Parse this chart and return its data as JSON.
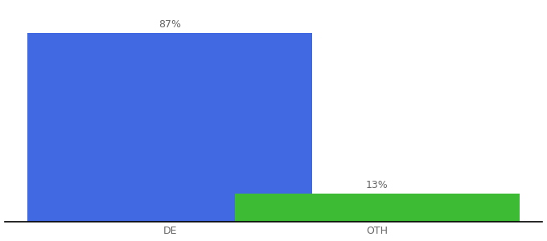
{
  "categories": [
    "DE",
    "OTH"
  ],
  "values": [
    87,
    13
  ],
  "bar_colors": [
    "#4169e1",
    "#3dbb35"
  ],
  "value_labels": [
    "87%",
    "13%"
  ],
  "background_color": "#ffffff",
  "ylim": [
    0,
    100
  ],
  "bar_width": 0.55,
  "label_fontsize": 9,
  "tick_fontsize": 9,
  "label_color": "#666666",
  "x_positions": [
    0.32,
    0.72
  ]
}
